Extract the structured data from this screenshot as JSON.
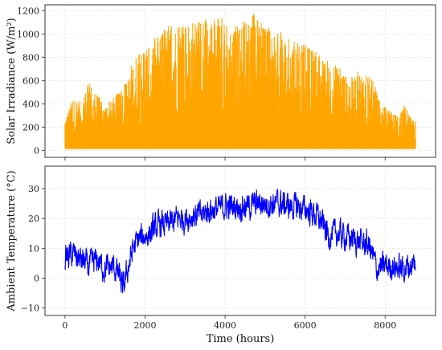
{
  "chart_data": [
    {
      "type": "line",
      "series": [
        {
          "color": "#FFA500"
        }
      ],
      "ylabel": "Solar Irradiance (W/m²)",
      "xlabel": "",
      "xlim": [
        -500,
        9260
      ],
      "ylim": [
        -60,
        1250
      ],
      "xticks": [
        0,
        2000,
        4000,
        6000,
        8000
      ],
      "xtick_labels_shown": false,
      "yticks": [
        0,
        200,
        400,
        600,
        800,
        1000,
        1200
      ],
      "ytick_labels": [
        "0",
        "200",
        "400",
        "600",
        "800",
        "1000",
        "1200"
      ],
      "grid": true,
      "envelope": {
        "x": [
          0,
          200,
          400,
          600,
          800,
          1000,
          1200,
          1400,
          1550,
          1700,
          1900,
          2100,
          2300,
          2500,
          2700,
          2900,
          3100,
          3300,
          3500,
          3700,
          3900,
          4100,
          4300,
          4500,
          4700,
          4900,
          5100,
          5300,
          5500,
          5700,
          5900,
          6100,
          6300,
          6500,
          6700,
          6900,
          7100,
          7300,
          7500,
          7700,
          7900,
          8100,
          8300,
          8500,
          8700
        ],
        "peak": [
          300,
          450,
          420,
          600,
          500,
          380,
          450,
          520,
          620,
          800,
          900,
          880,
          1000,
          1050,
          1100,
          1100,
          1150,
          1100,
          1150,
          1120,
          1150,
          1100,
          1100,
          1120,
          1180,
          1100,
          1050,
          1050,
          1000,
          950,
          920,
          900,
          850,
          780,
          750,
          720,
          600,
          700,
          680,
          600,
          400,
          350,
          300,
          400,
          250
        ]
      }
    },
    {
      "type": "line",
      "series": [
        {
          "color": "#0000FF"
        }
      ],
      "ylabel": "Ambient Temperature (°C)",
      "xlabel": "Time (hours)",
      "xlim": [
        -500,
        9260
      ],
      "ylim": [
        -12.5,
        37.5
      ],
      "xticks": [
        0,
        2000,
        4000,
        6000,
        8000
      ],
      "xtick_labels": [
        "0",
        "2000",
        "4000",
        "6000",
        "8000"
      ],
      "yticks": [
        -10,
        0,
        10,
        20,
        30
      ],
      "ytick_labels": [
        "−10",
        "0",
        "10",
        "20",
        "30"
      ],
      "grid": true,
      "trend": {
        "x": [
          0,
          200,
          400,
          600,
          800,
          1000,
          1200,
          1350,
          1450,
          1550,
          1700,
          1850,
          2000,
          2200,
          2400,
          2600,
          2800,
          3000,
          3200,
          3400,
          3600,
          3800,
          4000,
          4200,
          4400,
          4600,
          4800,
          5000,
          5200,
          5400,
          5600,
          5800,
          6000,
          6200,
          6400,
          6600,
          6800,
          7000,
          7200,
          7400,
          7600,
          7800,
          8000,
          8200,
          8400,
          8600,
          8760
        ],
        "y": [
          7,
          8,
          6,
          4,
          6,
          3,
          4,
          1,
          -4,
          2,
          10,
          13,
          14,
          16,
          18,
          18,
          20,
          20,
          21,
          21,
          23,
          23,
          24,
          24,
          24,
          24,
          25,
          25,
          25,
          25,
          24,
          24,
          23,
          22,
          19,
          14,
          15,
          14,
          13,
          12,
          11,
          3,
          4,
          4,
          3,
          4,
          5
        ]
      }
    }
  ]
}
